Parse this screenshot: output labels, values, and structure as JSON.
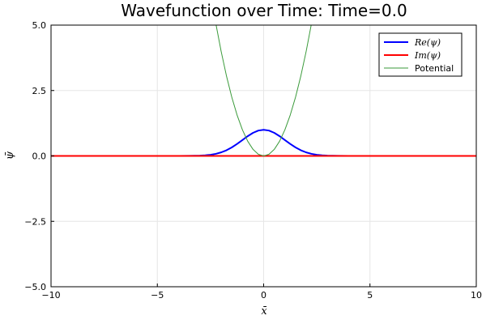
{
  "chart_data": {
    "type": "line",
    "title": "Wavefunction over Time: Time=0.0",
    "xlabel": "x̄",
    "ylabel": "ψ̄",
    "xlim": [
      -10,
      10
    ],
    "ylim": [
      -5,
      5
    ],
    "x_ticks": [
      -10,
      -5,
      0,
      5,
      10
    ],
    "x_tick_labels": [
      "−10",
      "−5",
      "0",
      "5",
      "10"
    ],
    "y_ticks": [
      -5,
      -2.5,
      0,
      2.5,
      5
    ],
    "y_tick_labels": [
      "−5.0",
      "−2.5",
      "0.0",
      "2.5",
      "5.0"
    ],
    "grid": true,
    "legend_position": "top-right",
    "series": [
      {
        "name": "Re(ψ)",
        "color": "#0000ff",
        "x": [
          -10,
          -4,
          -3.5,
          -3,
          -2.75,
          -2.5,
          -2.25,
          -2,
          -1.75,
          -1.5,
          -1.25,
          -1,
          -0.75,
          -0.5,
          -0.25,
          0,
          0.25,
          0.5,
          0.75,
          1,
          1.25,
          1.5,
          1.75,
          2,
          2.25,
          2.5,
          2.75,
          3,
          3.5,
          4,
          10
        ],
        "y": [
          0,
          0.0003,
          0.0022,
          0.011,
          0.0228,
          0.0439,
          0.0796,
          0.1353,
          0.2163,
          0.3247,
          0.4578,
          0.6065,
          0.7548,
          0.8825,
          0.9692,
          1,
          0.9692,
          0.8825,
          0.7548,
          0.6065,
          0.4578,
          0.3247,
          0.2163,
          0.1353,
          0.0796,
          0.0439,
          0.0228,
          0.011,
          0.0022,
          0.0003,
          0
        ]
      },
      {
        "name": "Im(ψ)",
        "color": "#ff0000",
        "x": [
          -10,
          10
        ],
        "y": [
          0,
          0
        ]
      },
      {
        "name": "Potential",
        "color": "#3a9a3a",
        "x": [
          -2.25,
          -2,
          -1.75,
          -1.5,
          -1.25,
          -1,
          -0.75,
          -0.5,
          -0.25,
          0,
          0.25,
          0.5,
          0.75,
          1,
          1.25,
          1.5,
          1.75,
          2,
          2.25
        ],
        "y": [
          5.0625,
          4,
          3.0625,
          2.25,
          1.5625,
          1,
          0.5625,
          0.25,
          0.0625,
          0,
          0.0625,
          0.25,
          0.5625,
          1,
          1.5625,
          2.25,
          3.0625,
          4,
          5.0625
        ]
      }
    ]
  }
}
